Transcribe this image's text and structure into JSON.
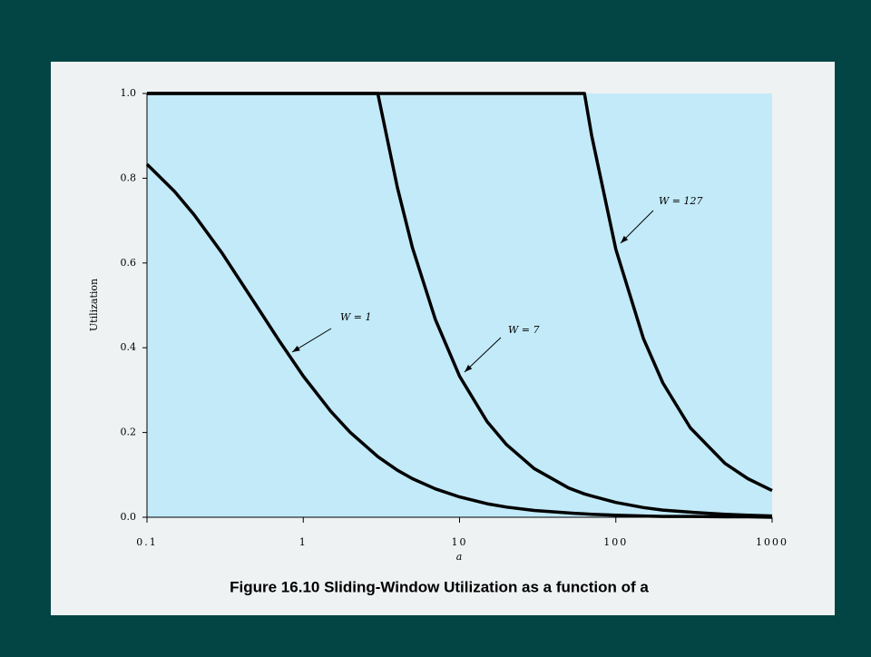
{
  "chart_data": {
    "type": "line",
    "title": "Figure 16.10 Sliding-Window Utilization as a function of a",
    "x_label": "a",
    "y_label": "Utilization",
    "xscale": "log",
    "x": [
      0.1,
      0.15,
      0.2,
      0.3,
      0.5,
      0.7,
      1,
      1.5,
      2,
      3,
      4,
      5,
      7,
      10,
      15,
      20,
      30,
      50,
      63,
      70,
      100,
      150,
      200,
      300,
      500,
      700,
      1000
    ],
    "series": [
      {
        "name": "W = 1",
        "color": "#000000",
        "values": [
          0.833,
          0.769,
          0.714,
          0.625,
          0.5,
          0.417,
          0.333,
          0.25,
          0.2,
          0.143,
          0.111,
          0.091,
          0.067,
          0.048,
          0.032,
          0.024,
          0.016,
          0.01,
          0.008,
          0.007,
          0.005,
          0.003,
          0.002,
          0.002,
          0.001,
          0.001,
          0
        ]
      },
      {
        "name": "W = 7",
        "color": "#000000",
        "values": [
          1,
          1,
          1,
          1,
          1,
          1,
          1,
          1,
          1,
          1,
          0.778,
          0.636,
          0.467,
          0.333,
          0.226,
          0.171,
          0.115,
          0.069,
          0.055,
          0.05,
          0.035,
          0.023,
          0.017,
          0.012,
          0.007,
          0.005,
          0.003
        ]
      },
      {
        "name": "W = 127",
        "color": "#000000",
        "values": [
          1,
          1,
          1,
          1,
          1,
          1,
          1,
          1,
          1,
          1,
          1,
          1,
          1,
          1,
          1,
          1,
          1,
          1,
          1,
          0.901,
          0.632,
          0.422,
          0.317,
          0.211,
          0.127,
          0.091,
          0.063
        ]
      }
    ],
    "xlim": [
      0.1,
      1000
    ],
    "xticks": [
      0.1,
      1,
      10,
      100,
      1000
    ],
    "ylim": [
      0,
      1
    ],
    "yticks": [
      {
        "value": 0,
        "label": "0.0"
      },
      0.2,
      0.4,
      0.6,
      0.8,
      {
        "value": 1,
        "label": "1.0"
      }
    ],
    "grid": false
  }
}
